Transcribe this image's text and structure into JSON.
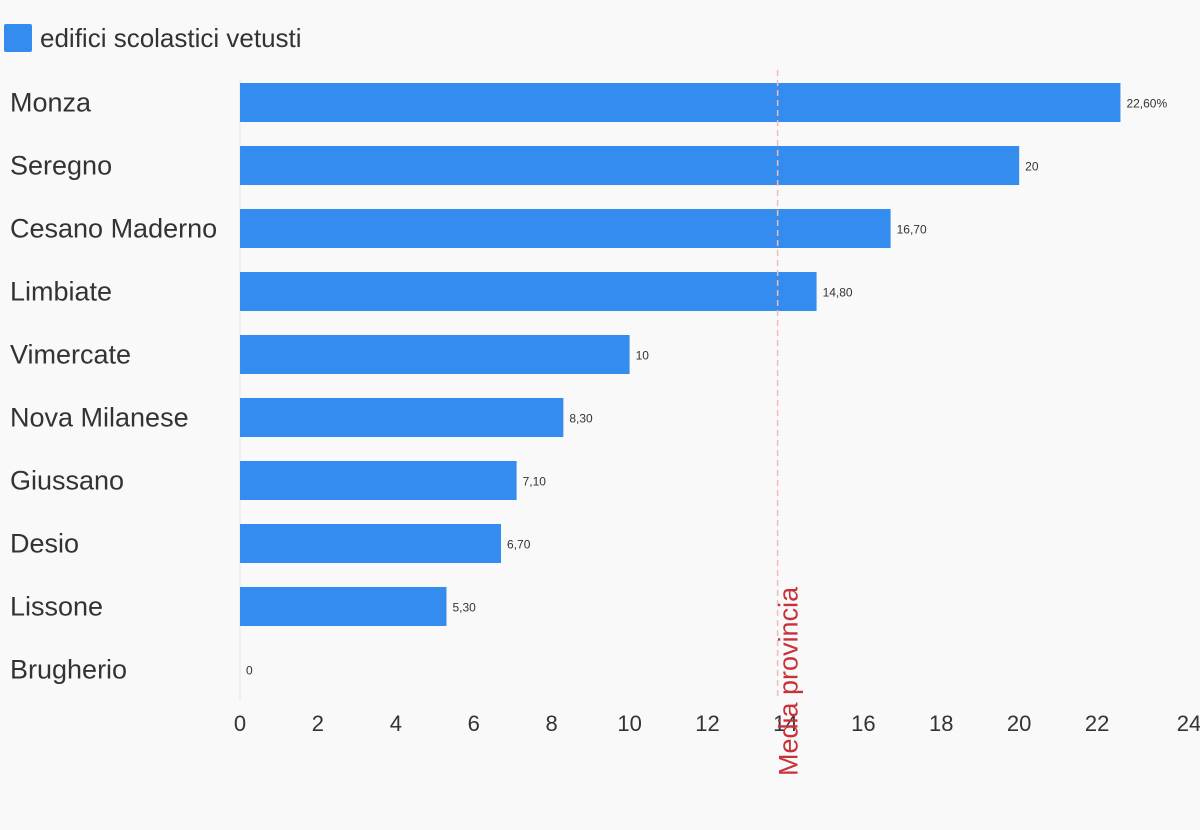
{
  "chart_data": {
    "type": "bar",
    "orientation": "horizontal",
    "categories": [
      "Monza",
      "Seregno",
      "Cesano Maderno",
      "Limbiate",
      "Vimercate",
      "Nova Milanese",
      "Giussano",
      "Desio",
      "Lissone",
      "Brugherio"
    ],
    "series": [
      {
        "name": "edifici scolastici vetusti",
        "values": [
          22.6,
          20,
          16.7,
          14.8,
          10,
          8.3,
          7.1,
          6.7,
          5.3,
          0
        ],
        "labels": [
          "22,60%",
          "20",
          "16,70",
          "14,80",
          "10",
          "8,30",
          "7,10",
          "6,70",
          "5,30",
          "0"
        ],
        "color": "#338cee"
      }
    ],
    "xlim": [
      0,
      24
    ],
    "xticks": [
      0,
      2,
      4,
      6,
      8,
      10,
      12,
      14,
      16,
      18,
      20,
      22,
      24
    ],
    "reference_line": {
      "value": 13.8,
      "label": "Media provincia",
      "color": "#c8313a",
      "style": "dashed"
    },
    "legend_position": "top-left",
    "grid": false
  }
}
